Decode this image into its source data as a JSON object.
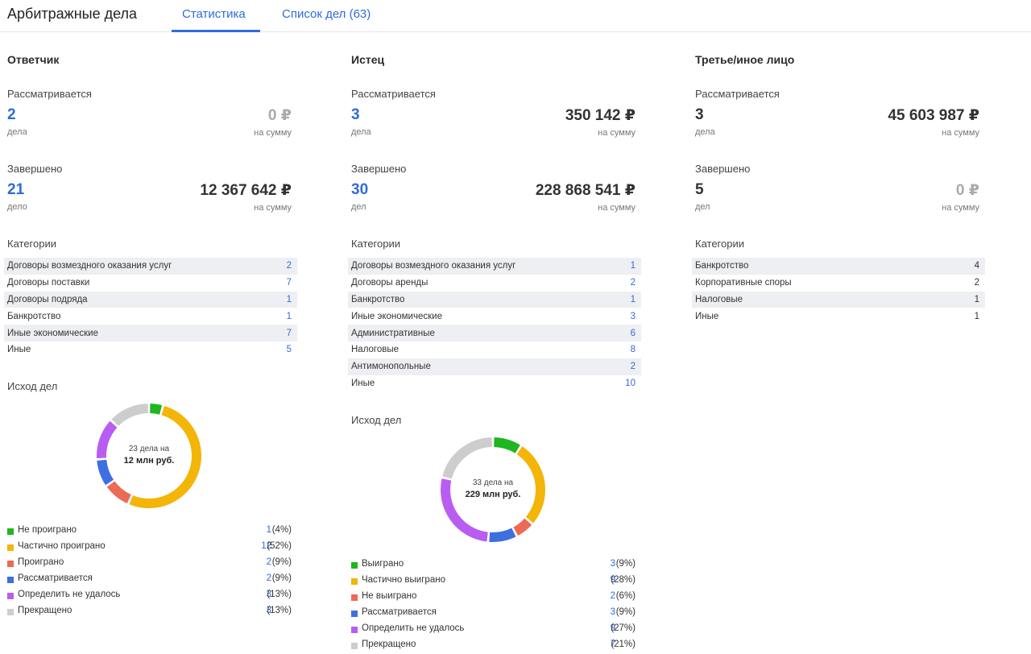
{
  "app": {
    "title": "Арбитражные дела",
    "tabs": [
      {
        "label": "Статистика"
      },
      {
        "label": "Список дел (63)"
      }
    ]
  },
  "colors": {
    "accent": "#2f6bdc",
    "not_lost": "#1fb61f",
    "partial": "#f3b507",
    "lost": "#ec6b56",
    "pending": "#3d6fe0",
    "undetermined": "#b95df2",
    "terminated": "#cdcdcd"
  },
  "columns": [
    {
      "title": "Ответчик",
      "pending_label": "Рассматривается",
      "pending_count": "2",
      "pending_count_label": "дела",
      "pending_sum": "0 ₽",
      "pending_sum_label": "на сумму",
      "done_label": "Завершено",
      "done_count": "21",
      "done_count_label": "дело",
      "done_sum": "12 367 642 ₽",
      "done_sum_label": "на сумму",
      "categories_label": "Категории",
      "categories": [
        {
          "name": "Договоры возмездного оказания услуг",
          "count": "2"
        },
        {
          "name": "Договоры поставки",
          "count": "7"
        },
        {
          "name": "Договоры подряда",
          "count": "1"
        },
        {
          "name": "Банкротство",
          "count": "1"
        },
        {
          "name": "Иные экономические",
          "count": "7"
        },
        {
          "name": "Иные",
          "count": "5"
        }
      ],
      "outcome_label": "Исход дел",
      "donut_line1": "23 дела на",
      "donut_line2": "12 млн руб.",
      "outcomes": [
        {
          "label": "Не проиграно",
          "count": "1",
          "pct": "(4%)",
          "value": 1,
          "color": "#1fb61f"
        },
        {
          "label": "Частично проиграно",
          "count": "12",
          "pct": "(52%)",
          "value": 12,
          "color": "#f3b507"
        },
        {
          "label": "Проиграно",
          "count": "2",
          "pct": "(9%)",
          "value": 2,
          "color": "#ec6b56"
        },
        {
          "label": "Рассматривается",
          "count": "2",
          "pct": "(9%)",
          "value": 2,
          "color": "#3d6fe0"
        },
        {
          "label": "Определить не удалось",
          "count": "3",
          "pct": "(13%)",
          "value": 3,
          "color": "#b95df2"
        },
        {
          "label": "Прекращено",
          "count": "3",
          "pct": "(13%)",
          "value": 3,
          "color": "#cdcdcd"
        }
      ]
    },
    {
      "title": "Истец",
      "pending_label": "Рассматривается",
      "pending_count": "3",
      "pending_count_label": "дела",
      "pending_sum": "350 142 ₽",
      "pending_sum_label": "на сумму",
      "done_label": "Завершено",
      "done_count": "30",
      "done_count_label": "дел",
      "done_sum": "228 868 541 ₽",
      "done_sum_label": "на сумму",
      "categories_label": "Категории",
      "categories": [
        {
          "name": "Договоры возмездного оказания услуг",
          "count": "1"
        },
        {
          "name": "Договоры аренды",
          "count": "2"
        },
        {
          "name": "Банкротство",
          "count": "1"
        },
        {
          "name": "Иные экономические",
          "count": "3"
        },
        {
          "name": "Административные",
          "count": "6"
        },
        {
          "name": "Налоговые",
          "count": "8"
        },
        {
          "name": "Антимонопольные",
          "count": "2"
        },
        {
          "name": "Иные",
          "count": "10"
        }
      ],
      "outcome_label": "Исход дел",
      "donut_line1": "33 дела на",
      "donut_line2": "229 млн руб.",
      "outcomes": [
        {
          "label": "Выиграно",
          "count": "3",
          "pct": "(9%)",
          "value": 3,
          "color": "#1fb61f"
        },
        {
          "label": "Частично выиграно",
          "count": "9",
          "pct": "(28%)",
          "value": 9,
          "color": "#f3b507"
        },
        {
          "label": "Не выиграно",
          "count": "2",
          "pct": "(6%)",
          "value": 2,
          "color": "#ec6b56"
        },
        {
          "label": "Рассматривается",
          "count": "3",
          "pct": "(9%)",
          "value": 3,
          "color": "#3d6fe0"
        },
        {
          "label": "Определить не удалось",
          "count": "9",
          "pct": "(27%)",
          "value": 9,
          "color": "#b95df2"
        },
        {
          "label": "Прекращено",
          "count": "7",
          "pct": "(21%)",
          "value": 7,
          "color": "#cdcdcd"
        }
      ]
    },
    {
      "title": "Третье/иное лицо",
      "pending_label": "Рассматривается",
      "pending_count": "3",
      "pending_count_label": "дела",
      "pending_sum": "45 603 987 ₽",
      "pending_sum_label": "на сумму",
      "done_label": "Завершено",
      "done_count": "5",
      "done_count_label": "дел",
      "done_sum": "0 ₽",
      "done_sum_label": "на сумму",
      "categories_label": "Категории",
      "categories": [
        {
          "name": "Банкротство",
          "count": "4"
        },
        {
          "name": "Корпоративные споры",
          "count": "2"
        },
        {
          "name": "Налоговые",
          "count": "1"
        },
        {
          "name": "Иные",
          "count": "1"
        }
      ]
    }
  ]
}
